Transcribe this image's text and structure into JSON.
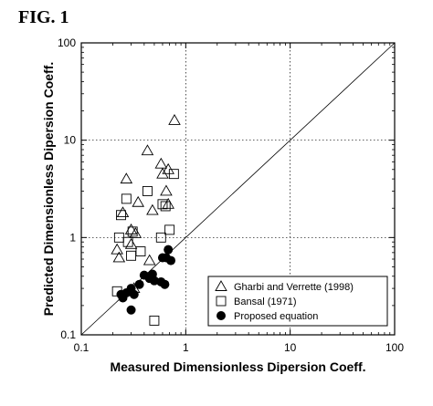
{
  "figure_label": "FIG. 1",
  "chart_data": {
    "type": "scatter",
    "xlabel": "Measured Dimensionless Dipersion Coeff.",
    "ylabel": "Predicted Dimensionless Dipersion Coeff.",
    "xscale": "log",
    "yscale": "log",
    "xlim": [
      0.1,
      100
    ],
    "ylim": [
      0.1,
      100
    ],
    "x_ticks": [
      0.1,
      1,
      10,
      100
    ],
    "x_tick_labels": [
      "0.1",
      "1",
      "10",
      "100"
    ],
    "y_ticks": [
      0.1,
      1,
      10,
      100
    ],
    "y_tick_labels": [
      "0.1",
      "1",
      "10",
      "100"
    ],
    "grid": "dotted",
    "reference_line": "y = x",
    "legend_position": "bottom-right",
    "series": [
      {
        "name": "Gharbi and Verrette (1998)",
        "marker": "triangle-open",
        "color": "#000000",
        "points": [
          [
            0.27,
            4.0
          ],
          [
            0.25,
            1.8
          ],
          [
            0.3,
            1.2
          ],
          [
            0.33,
            1.1
          ],
          [
            0.35,
            2.3
          ],
          [
            0.43,
            7.8
          ],
          [
            0.48,
            1.9
          ],
          [
            0.58,
            5.7
          ],
          [
            0.6,
            4.5
          ],
          [
            0.65,
            3.0
          ],
          [
            0.68,
            5.0
          ],
          [
            0.68,
            2.2
          ],
          [
            0.78,
            16.0
          ],
          [
            0.22,
            0.75
          ],
          [
            0.23,
            0.62
          ],
          [
            0.3,
            0.85
          ],
          [
            0.45,
            0.58
          ],
          [
            0.32,
            0.3
          ]
        ]
      },
      {
        "name": "Bansal (1971)",
        "marker": "square-open",
        "color": "#000000",
        "points": [
          [
            0.23,
            1.0
          ],
          [
            0.24,
            1.7
          ],
          [
            0.27,
            2.5
          ],
          [
            0.3,
            0.65
          ],
          [
            0.31,
            1.15
          ],
          [
            0.37,
            0.72
          ],
          [
            0.43,
            3.0
          ],
          [
            0.6,
            2.2
          ],
          [
            0.64,
            2.1
          ],
          [
            0.7,
            1.2
          ],
          [
            0.77,
            4.5
          ],
          [
            0.5,
            0.14
          ],
          [
            0.22,
            0.28
          ],
          [
            0.28,
            0.9
          ],
          [
            0.58,
            1.0
          ]
        ]
      },
      {
        "name": "Proposed equation",
        "marker": "circle-filled",
        "color": "#000000",
        "points": [
          [
            0.24,
            0.26
          ],
          [
            0.27,
            0.27
          ],
          [
            0.3,
            0.3
          ],
          [
            0.32,
            0.26
          ],
          [
            0.36,
            0.33
          ],
          [
            0.4,
            0.41
          ],
          [
            0.45,
            0.38
          ],
          [
            0.48,
            0.42
          ],
          [
            0.5,
            0.36
          ],
          [
            0.58,
            0.35
          ],
          [
            0.6,
            0.62
          ],
          [
            0.63,
            0.33
          ],
          [
            0.68,
            0.75
          ],
          [
            0.72,
            0.58
          ],
          [
            0.3,
            0.18
          ],
          [
            0.25,
            0.24
          ],
          [
            0.65,
            0.62
          ]
        ]
      }
    ]
  }
}
